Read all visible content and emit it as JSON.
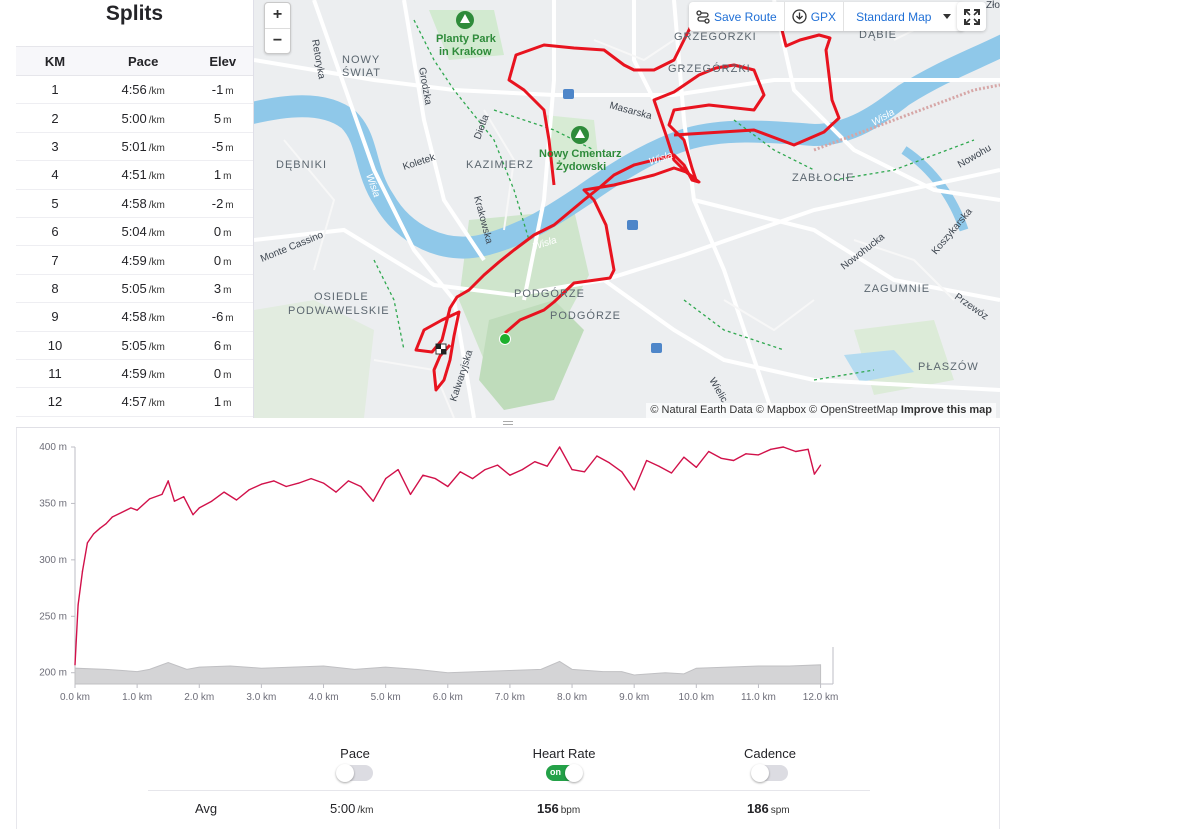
{
  "splits": {
    "title": "Splits",
    "headers": [
      "KM",
      "Pace",
      "Elev"
    ],
    "pace_unit": "/km",
    "elev_unit": "m",
    "rows": [
      {
        "km": "1",
        "pace": "4:56",
        "elev": "-1"
      },
      {
        "km": "2",
        "pace": "5:00",
        "elev": "5"
      },
      {
        "km": "3",
        "pace": "5:01",
        "elev": "-5"
      },
      {
        "km": "4",
        "pace": "4:51",
        "elev": "1"
      },
      {
        "km": "5",
        "pace": "4:58",
        "elev": "-2"
      },
      {
        "km": "6",
        "pace": "5:04",
        "elev": "0"
      },
      {
        "km": "7",
        "pace": "4:59",
        "elev": "0"
      },
      {
        "km": "8",
        "pace": "5:05",
        "elev": "3"
      },
      {
        "km": "9",
        "pace": "4:58",
        "elev": "-6"
      },
      {
        "km": "10",
        "pace": "5:05",
        "elev": "6"
      },
      {
        "km": "11",
        "pace": "4:59",
        "elev": "0"
      },
      {
        "km": "12",
        "pace": "4:57",
        "elev": "1"
      }
    ]
  },
  "map": {
    "zoom_in": "+",
    "zoom_out": "−",
    "toolbar": {
      "save_route": "Save Route",
      "gpx": "GPX",
      "map_style": "Standard Map"
    },
    "attribution": {
      "text": "© Natural Earth Data © Mapbox © OpenStreetMap",
      "improve": "Improve this map"
    },
    "labels": {
      "nowy_swiat_1": "NOWY",
      "nowy_swiat_2": "ŚWIAT",
      "grzegorzki_1": "GRZEGÓRZKI",
      "grzegorzki_2": "GRZEGÓRZKI",
      "dabie": "DĄBIE",
      "debniki": "DĘBNIKI",
      "kazimierz": "KAZIMIERZ",
      "zablocie": "ZABŁOCIE",
      "zagumnie": "ZAGUMNIE",
      "podgorze_1": "PODGÓRZE",
      "podgorze_2": "PODGÓRZE",
      "osiedle_1": "OSIEDLE",
      "osiedle_2": "PODWAWELSKIE",
      "plaszow": "PŁASZÓW",
      "planty_1": "Planty Park",
      "planty_2": "in Krakow",
      "cmentarz_1": "Nowy Cmentarz",
      "cmentarz_2": "Żydowski",
      "masarska": "Masarska",
      "koletek": "Koletek",
      "dietla": "Dietla",
      "krakowska": "Krakowska",
      "monte_cassino": "Monte Cassino",
      "retoryka": "Retoryka",
      "grodzka": "Grodzka",
      "nowohucka": "Nowohucka",
      "nowohu": "Nowohu",
      "koszykarska": "Koszykarska",
      "przewoz": "Przewóz",
      "kalwaryjska": "Kalwaryjska",
      "wielicka": "Wielic",
      "wisla_1": "Wisła",
      "wisla_2": "Wisła",
      "wisla_3": "Wisła",
      "wisla_4": "Wisła",
      "zolo": "Zło"
    },
    "colors": {
      "route": "#e8131f",
      "start": "#1db02d",
      "water": "#8fc8e9",
      "park": "#cfe8cf"
    }
  },
  "chart_data": {
    "type": "area",
    "title": "",
    "xlabel": "",
    "ylabel": "",
    "x_unit": "km",
    "y_unit": "m",
    "xlim": [
      0,
      12.2
    ],
    "ylim": [
      190,
      400
    ],
    "x_ticks": [
      {
        "value": 0,
        "label": "0.0 km"
      },
      {
        "value": 1,
        "label": "1.0 km"
      },
      {
        "value": 2,
        "label": "2.0 km"
      },
      {
        "value": 3,
        "label": "3.0 km"
      },
      {
        "value": 4,
        "label": "4.0 km"
      },
      {
        "value": 5,
        "label": "5.0 km"
      },
      {
        "value": 6,
        "label": "6.0 km"
      },
      {
        "value": 7,
        "label": "7.0 km"
      },
      {
        "value": 8,
        "label": "8.0 km"
      },
      {
        "value": 9,
        "label": "9.0 km"
      },
      {
        "value": 10,
        "label": "10.0 km"
      },
      {
        "value": 11,
        "label": "11.0 km"
      },
      {
        "value": 12,
        "label": "12.0 km"
      }
    ],
    "y_ticks": [
      {
        "value": 200,
        "label": "200 m"
      },
      {
        "value": 250,
        "label": "250 m"
      },
      {
        "value": 300,
        "label": "300 m"
      },
      {
        "value": 350,
        "label": "350 m"
      },
      {
        "value": 400,
        "label": "400 m"
      }
    ],
    "series": [
      {
        "name": "Heart Rate",
        "color": "#d1114a",
        "x": [
          0,
          0.05,
          0.12,
          0.2,
          0.3,
          0.4,
          0.5,
          0.6,
          0.75,
          0.9,
          1.0,
          1.2,
          1.4,
          1.5,
          1.6,
          1.75,
          1.9,
          2.0,
          2.2,
          2.4,
          2.6,
          2.8,
          3.0,
          3.2,
          3.4,
          3.6,
          3.8,
          4.0,
          4.2,
          4.4,
          4.6,
          4.8,
          5.0,
          5.2,
          5.4,
          5.6,
          5.8,
          6.0,
          6.2,
          6.4,
          6.6,
          6.8,
          7.0,
          7.2,
          7.4,
          7.6,
          7.8,
          8.0,
          8.2,
          8.4,
          8.6,
          8.8,
          9.0,
          9.2,
          9.4,
          9.6,
          9.8,
          10.0,
          10.2,
          10.4,
          10.6,
          10.8,
          11.0,
          11.2,
          11.4,
          11.6,
          11.8,
          11.9,
          12.0
        ],
        "values": [
          207,
          260,
          290,
          315,
          323,
          328,
          332,
          338,
          342,
          346,
          344,
          354,
          358,
          370,
          352,
          356,
          340,
          346,
          352,
          360,
          353,
          362,
          367,
          370,
          365,
          368,
          372,
          368,
          360,
          370,
          365,
          352,
          372,
          380,
          358,
          375,
          372,
          365,
          378,
          372,
          380,
          384,
          375,
          380,
          387,
          383,
          400,
          380,
          378,
          392,
          386,
          378,
          362,
          388,
          383,
          377,
          391,
          382,
          396,
          390,
          388,
          394,
          393,
          398,
          400,
          396,
          398,
          376,
          384
        ]
      },
      {
        "name": "Elevation",
        "color": "#c9c9cc",
        "x": [
          0,
          0.5,
          1.0,
          1.2,
          1.5,
          1.8,
          2.0,
          2.5,
          3.0,
          3.5,
          4.0,
          4.5,
          5.0,
          5.5,
          6.0,
          6.5,
          7.0,
          7.5,
          7.8,
          8.0,
          8.5,
          8.8,
          9.0,
          9.5,
          9.8,
          10.0,
          10.5,
          11.0,
          11.5,
          12.0
        ],
        "values": [
          204,
          203,
          201,
          203,
          209,
          203,
          205,
          206,
          204,
          205,
          206,
          203,
          205,
          203,
          200,
          201,
          202,
          203,
          210,
          203,
          201,
          201,
          198,
          200,
          199,
          204,
          205,
          206,
          206,
          207
        ]
      }
    ]
  },
  "streams": {
    "pace": {
      "label": "Pace",
      "state": "off"
    },
    "heart_rate": {
      "label": "Heart Rate",
      "state": "on",
      "state_text": "on"
    },
    "cadence": {
      "label": "Cadence",
      "state": "off"
    }
  },
  "avg": {
    "label": "Avg",
    "pace": "5:00",
    "pace_unit": "/km",
    "heart_rate": "156",
    "heart_rate_unit": "bpm",
    "cadence": "186",
    "cadence_unit": "spm"
  }
}
